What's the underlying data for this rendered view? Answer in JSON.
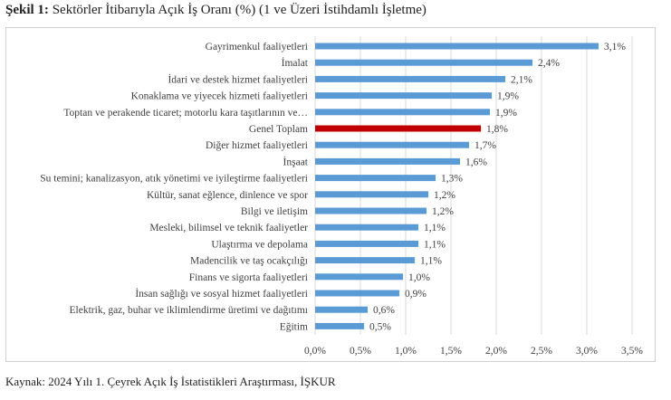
{
  "title": {
    "prefix": "Şekil 1:",
    "text": " Sektörler İtibarıyla Açık İş Oranı (%) (1 ve Üzeri İstihdamlı İşletme)"
  },
  "source": "Kaynak: 2024 Yılı 1. Çeyrek Açık İş İstatistikleri Araştırması, İŞKUR",
  "colors": {
    "bar": "#5b9bd5",
    "highlight": "#c00000",
    "grid": "#d9d9d9",
    "text": "#404040"
  },
  "chart_data": {
    "type": "bar",
    "orientation": "horizontal",
    "categories": [
      "Gayrimenkul faaliyetleri",
      "İmalat",
      "İdari ve destek hizmet faaliyetleri",
      "Konaklama ve yiyecek hizmeti faaliyetleri",
      "Toptan ve perakende ticaret; motorlu kara taşıtlarının ve…",
      "Genel Toplam",
      "Diğer hizmet faaliyetleri",
      "İnşaat",
      "Su temini; kanalizasyon, atık yönetimi ve iyileştirme faaliyetleri",
      "Kültür, sanat eğlence, dinlence ve spor",
      "Bilgi ve iletişim",
      "Mesleki, bilimsel ve teknik faaliyetler",
      "Ulaştırma ve depolama",
      "Madencilik ve taş ocakçılığı",
      "Finans ve sigorta faaliyetleri",
      "İnsan sağlığı ve sosyal hizmet faaliyetleri",
      "Elektrik, gaz, buhar ve iklimlendirme üretimi ve dağıtımı",
      "Eğitim"
    ],
    "values": [
      3.13,
      2.4,
      2.1,
      1.95,
      1.93,
      1.83,
      1.7,
      1.6,
      1.33,
      1.25,
      1.23,
      1.14,
      1.14,
      1.1,
      0.97,
      0.93,
      0.58,
      0.54
    ],
    "value_labels": [
      "3,1%",
      "2,4%",
      "2,1%",
      "1,9%",
      "1,9%",
      "1,8%",
      "1,7%",
      "1,6%",
      "1,3%",
      "1,2%",
      "1,2%",
      "1,1%",
      "1,1%",
      "1,1%",
      "1,0%",
      "0,9%",
      "0,6%",
      "0,5%"
    ],
    "highlight_category": "Genel Toplam",
    "xlim": [
      0,
      3.5
    ],
    "x_ticks": [
      0,
      0.5,
      1,
      1.5,
      2,
      2.5,
      3,
      3.5
    ],
    "x_tick_labels": [
      "0,0%",
      "0,5%",
      "1,0%",
      "1,5%",
      "2,0%",
      "2,5%",
      "3,0%",
      "3,5%"
    ],
    "grid": true,
    "legend": "none"
  }
}
